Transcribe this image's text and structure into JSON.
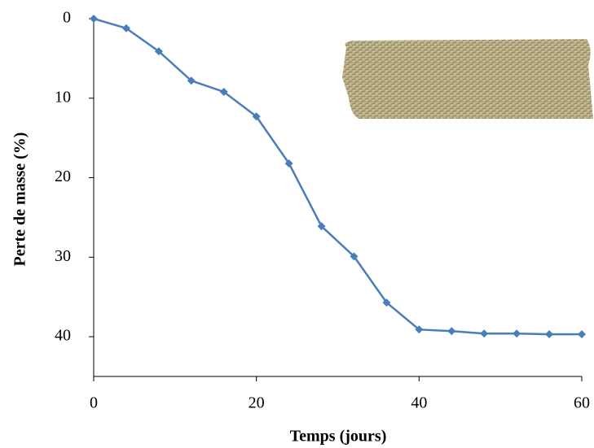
{
  "chart_data": {
    "type": "line",
    "x_label": "Temps (jours)",
    "y_label": "Perte de masse (%)",
    "x": [
      0,
      4,
      8,
      12,
      16,
      20,
      24,
      28,
      32,
      36,
      40,
      44,
      48,
      52,
      56,
      60
    ],
    "series": [
      {
        "name": "Perte de masse",
        "color": "#4a7ebb",
        "values": [
          0,
          1.2,
          4.1,
          7.8,
          9.2,
          12.3,
          18.2,
          26.1,
          29.9,
          35.7,
          39.1,
          39.3,
          39.6,
          39.6,
          39.7,
          39.7
        ]
      }
    ],
    "xlim": [
      0,
      60
    ],
    "xticks": [
      0,
      20,
      40,
      60
    ],
    "ylim": [
      0,
      45
    ],
    "yticks": [
      0,
      10,
      20,
      30,
      40
    ],
    "y_inverted": true,
    "grid": false,
    "legend": false
  }
}
